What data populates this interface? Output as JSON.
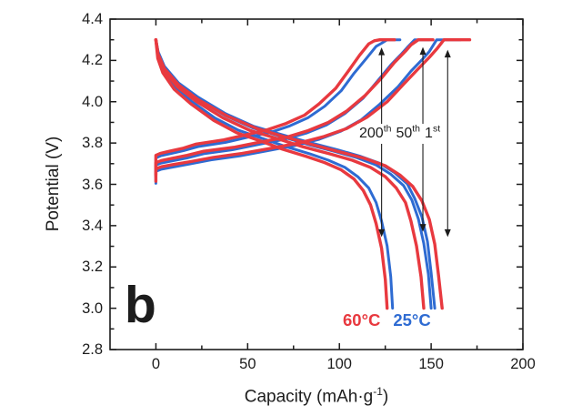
{
  "figure": {
    "panel_label": "b"
  },
  "chart_data": {
    "type": "line",
    "title": "",
    "xlabel": {
      "pre": "Capacity (mAh·g",
      "sup": "-1",
      "post": ")"
    },
    "ylabel": "Potential (V)",
    "xlim": [
      -25,
      200
    ],
    "ylim": [
      2.8,
      4.4
    ],
    "x_ticks": [
      0,
      50,
      100,
      150,
      200
    ],
    "x_minor_ticks": [
      25,
      75,
      125,
      175
    ],
    "y_ticks": [
      2.8,
      3.0,
      3.2,
      3.4,
      3.6,
      3.8,
      4.0,
      4.2,
      4.4
    ],
    "y_minor_ticks": [
      2.9,
      3.1,
      3.3,
      3.5,
      3.7,
      3.9,
      4.1,
      4.3
    ],
    "grid": false,
    "colors": {
      "60C": "#e8393f",
      "25C": "#2e6bd2",
      "axis": "#1c1c1c"
    },
    "legend": [
      {
        "label": "60°C",
        "color_key": "60C"
      },
      {
        "label": "25°C",
        "color_key": "25C"
      }
    ],
    "annotation": {
      "cycles": [
        {
          "base": "200",
          "sup": "th"
        },
        {
          "base": "50",
          "sup": "th"
        },
        {
          "base": "1",
          "sup": "st"
        }
      ]
    },
    "arrows": [
      {
        "cap": 123,
        "v_top": 4.263,
        "v_bottom": 3.345
      },
      {
        "cap": 145.5,
        "v_top": 4.265,
        "v_bottom": 3.37
      },
      {
        "cap": 159,
        "v_top": 4.252,
        "v_bottom": 3.345
      }
    ],
    "series": [
      {
        "name": "25C-1st-charge",
        "temp": "25°C",
        "cycle": "1st",
        "half": "charge",
        "color_key": "25C",
        "points": [
          [
            0,
            3.605
          ],
          [
            0,
            3.663
          ],
          [
            3,
            3.673
          ],
          [
            9,
            3.683
          ],
          [
            18,
            3.698
          ],
          [
            30,
            3.718
          ],
          [
            46,
            3.738
          ],
          [
            61,
            3.763
          ],
          [
            76,
            3.788
          ],
          [
            89,
            3.818
          ],
          [
            101,
            3.858
          ],
          [
            112,
            3.913
          ],
          [
            122,
            3.988
          ],
          [
            132,
            4.073
          ],
          [
            139,
            4.148
          ],
          [
            145,
            4.203
          ],
          [
            149,
            4.243
          ],
          [
            153,
            4.3
          ],
          [
            166,
            4.3
          ]
        ]
      },
      {
        "name": "25C-50th-charge",
        "temp": "25°C",
        "cycle": "50th",
        "half": "charge",
        "color_key": "25C",
        "points": [
          [
            0,
            3.633
          ],
          [
            0,
            3.693
          ],
          [
            2.8,
            3.703
          ],
          [
            8.5,
            3.713
          ],
          [
            17,
            3.728
          ],
          [
            26,
            3.748
          ],
          [
            42,
            3.768
          ],
          [
            56,
            3.793
          ],
          [
            70,
            3.818
          ],
          [
            82,
            3.848
          ],
          [
            93,
            3.888
          ],
          [
            103,
            3.943
          ],
          [
            113,
            4.018
          ],
          [
            121,
            4.103
          ],
          [
            128,
            4.178
          ],
          [
            134,
            4.233
          ],
          [
            137,
            4.263
          ],
          [
            141,
            4.3
          ],
          [
            149,
            4.3
          ]
        ]
      },
      {
        "name": "25C-200th-charge",
        "temp": "25°C",
        "cycle": "200th",
        "half": "charge",
        "color_key": "25C",
        "points": [
          [
            0,
            3.668
          ],
          [
            0,
            3.728
          ],
          [
            2.5,
            3.738
          ],
          [
            7.6,
            3.748
          ],
          [
            15,
            3.763
          ],
          [
            23,
            3.783
          ],
          [
            38,
            3.803
          ],
          [
            50,
            3.828
          ],
          [
            63,
            3.853
          ],
          [
            73,
            3.883
          ],
          [
            83,
            3.923
          ],
          [
            92,
            3.978
          ],
          [
            101,
            4.053
          ],
          [
            108,
            4.138
          ],
          [
            115,
            4.213
          ],
          [
            120,
            4.268
          ],
          [
            123,
            4.283
          ],
          [
            126,
            4.3
          ],
          [
            133,
            4.3
          ]
        ]
      },
      {
        "name": "25C-1st-discharge",
        "temp": "25°C",
        "cycle": "1st",
        "half": "discharge",
        "color_key": "25C",
        "points": [
          [
            0,
            4.3
          ],
          [
            1.2,
            4.242
          ],
          [
            4.6,
            4.172
          ],
          [
            12.2,
            4.092
          ],
          [
            23,
            4.022
          ],
          [
            38,
            3.942
          ],
          [
            53,
            3.882
          ],
          [
            68,
            3.842
          ],
          [
            84,
            3.802
          ],
          [
            99,
            3.767
          ],
          [
            111,
            3.737
          ],
          [
            122,
            3.702
          ],
          [
            130,
            3.657
          ],
          [
            137,
            3.602
          ],
          [
            141,
            3.532
          ],
          [
            145,
            3.442
          ],
          [
            148,
            3.322
          ],
          [
            150,
            3.172
          ],
          [
            152,
            3.0
          ]
        ]
      },
      {
        "name": "25C-50th-discharge",
        "temp": "25°C",
        "cycle": "50th",
        "half": "discharge",
        "color_key": "25C",
        "points": [
          [
            0,
            4.3
          ],
          [
            1.2,
            4.234
          ],
          [
            4.5,
            4.164
          ],
          [
            12,
            4.084
          ],
          [
            22.5,
            4.014
          ],
          [
            37.5,
            3.934
          ],
          [
            52.5,
            3.874
          ],
          [
            67.5,
            3.834
          ],
          [
            82.5,
            3.794
          ],
          [
            97.5,
            3.759
          ],
          [
            109.5,
            3.729
          ],
          [
            120,
            3.694
          ],
          [
            128,
            3.649
          ],
          [
            135,
            3.594
          ],
          [
            139.5,
            3.524
          ],
          [
            143,
            3.434
          ],
          [
            146,
            3.314
          ],
          [
            148.5,
            3.164
          ],
          [
            150,
            3.0
          ]
        ]
      },
      {
        "name": "25C-200th-discharge",
        "temp": "25°C",
        "cycle": "200th",
        "half": "discharge",
        "color_key": "25C",
        "points": [
          [
            0,
            4.3
          ],
          [
            1,
            4.222
          ],
          [
            3.9,
            4.152
          ],
          [
            10.3,
            4.072
          ],
          [
            19.4,
            4.002
          ],
          [
            32,
            3.922
          ],
          [
            45,
            3.862
          ],
          [
            58,
            3.822
          ],
          [
            71,
            3.782
          ],
          [
            84,
            3.747
          ],
          [
            94,
            3.717
          ],
          [
            103,
            3.682
          ],
          [
            110,
            3.637
          ],
          [
            116,
            3.582
          ],
          [
            120,
            3.512
          ],
          [
            123,
            3.422
          ],
          [
            126,
            3.302
          ],
          [
            128,
            3.152
          ],
          [
            129,
            3.0
          ]
        ]
      },
      {
        "name": "60C-1st-charge",
        "temp": "60°C",
        "cycle": "1st",
        "half": "charge",
        "color_key": "60C",
        "points": [
          [
            0,
            3.615
          ],
          [
            0,
            3.675
          ],
          [
            3,
            3.685
          ],
          [
            9,
            3.695
          ],
          [
            19,
            3.71
          ],
          [
            31,
            3.73
          ],
          [
            47,
            3.75
          ],
          [
            63,
            3.775
          ],
          [
            78,
            3.8
          ],
          [
            91,
            3.83
          ],
          [
            104,
            3.87
          ],
          [
            115,
            3.925
          ],
          [
            126,
            4.0
          ],
          [
            135,
            4.085
          ],
          [
            143,
            4.16
          ],
          [
            149,
            4.215
          ],
          [
            153,
            4.255
          ],
          [
            157,
            4.3
          ],
          [
            171,
            4.3
          ]
        ]
      },
      {
        "name": "60C-50th-charge",
        "temp": "60°C",
        "cycle": "50th",
        "half": "charge",
        "color_key": "60C",
        "points": [
          [
            0,
            3.645
          ],
          [
            0,
            3.705
          ],
          [
            2.9,
            3.715
          ],
          [
            8.6,
            3.725
          ],
          [
            17,
            3.74
          ],
          [
            26,
            3.76
          ],
          [
            43,
            3.78
          ],
          [
            57,
            3.805
          ],
          [
            72,
            3.83
          ],
          [
            83,
            3.86
          ],
          [
            94,
            3.9
          ],
          [
            104,
            3.955
          ],
          [
            114,
            4.03
          ],
          [
            123,
            4.115
          ],
          [
            130,
            4.19
          ],
          [
            136,
            4.245
          ],
          [
            139,
            4.275
          ],
          [
            143,
            4.3
          ],
          [
            151,
            4.3
          ]
        ]
      },
      {
        "name": "60C-200th-charge",
        "temp": "60°C",
        "cycle": "200th",
        "half": "charge",
        "color_key": "60C",
        "points": [
          [
            0,
            3.68
          ],
          [
            0,
            3.74
          ],
          [
            2.4,
            3.75
          ],
          [
            7.3,
            3.76
          ],
          [
            15,
            3.775
          ],
          [
            22,
            3.795
          ],
          [
            37,
            3.815
          ],
          [
            49,
            3.84
          ],
          [
            61,
            3.865
          ],
          [
            71,
            3.895
          ],
          [
            81,
            3.935
          ],
          [
            89,
            3.99
          ],
          [
            98,
            4.065
          ],
          [
            105,
            4.15
          ],
          [
            111,
            4.225
          ],
          [
            116,
            4.28
          ],
          [
            119,
            4.295
          ],
          [
            122,
            4.3
          ],
          [
            130,
            4.3
          ]
        ]
      },
      {
        "name": "60C-1st-discharge",
        "temp": "60°C",
        "cycle": "1st",
        "half": "discharge",
        "color_key": "60C",
        "points": [
          [
            0,
            4.3
          ],
          [
            1.2,
            4.23
          ],
          [
            4.7,
            4.16
          ],
          [
            12.5,
            4.08
          ],
          [
            23,
            4.01
          ],
          [
            39,
            3.93
          ],
          [
            55,
            3.87
          ],
          [
            70,
            3.83
          ],
          [
            86,
            3.79
          ],
          [
            101,
            3.755
          ],
          [
            114,
            3.725
          ],
          [
            125,
            3.69
          ],
          [
            133,
            3.645
          ],
          [
            140,
            3.59
          ],
          [
            145,
            3.52
          ],
          [
            149,
            3.43
          ],
          [
            152,
            3.31
          ],
          [
            154,
            3.16
          ],
          [
            156,
            3.0
          ]
        ]
      },
      {
        "name": "60C-50th-discharge",
        "temp": "60°C",
        "cycle": "50th",
        "half": "discharge",
        "color_key": "60C",
        "points": [
          [
            0,
            4.3
          ],
          [
            1.2,
            4.222
          ],
          [
            4.4,
            4.152
          ],
          [
            11.7,
            4.072
          ],
          [
            22,
            4.002
          ],
          [
            36.5,
            3.922
          ],
          [
            51,
            3.862
          ],
          [
            66,
            3.822
          ],
          [
            80,
            3.782
          ],
          [
            95,
            3.747
          ],
          [
            107,
            3.717
          ],
          [
            117,
            3.682
          ],
          [
            125,
            3.637
          ],
          [
            131,
            3.582
          ],
          [
            136,
            3.512
          ],
          [
            139,
            3.422
          ],
          [
            142,
            3.302
          ],
          [
            144.5,
            3.152
          ],
          [
            146,
            3.0
          ]
        ]
      },
      {
        "name": "60C-200th-discharge",
        "temp": "60°C",
        "cycle": "200th",
        "half": "discharge",
        "color_key": "60C",
        "points": [
          [
            0,
            4.3
          ],
          [
            1,
            4.21
          ],
          [
            3.8,
            4.14
          ],
          [
            10,
            4.06
          ],
          [
            19,
            3.99
          ],
          [
            31.5,
            3.91
          ],
          [
            44,
            3.85
          ],
          [
            57,
            3.81
          ],
          [
            69,
            3.77
          ],
          [
            82,
            3.735
          ],
          [
            92,
            3.705
          ],
          [
            101,
            3.67
          ],
          [
            108,
            3.625
          ],
          [
            113,
            3.57
          ],
          [
            117,
            3.5
          ],
          [
            120,
            3.41
          ],
          [
            123,
            3.29
          ],
          [
            125,
            3.14
          ],
          [
            126,
            3.0
          ]
        ]
      }
    ]
  }
}
